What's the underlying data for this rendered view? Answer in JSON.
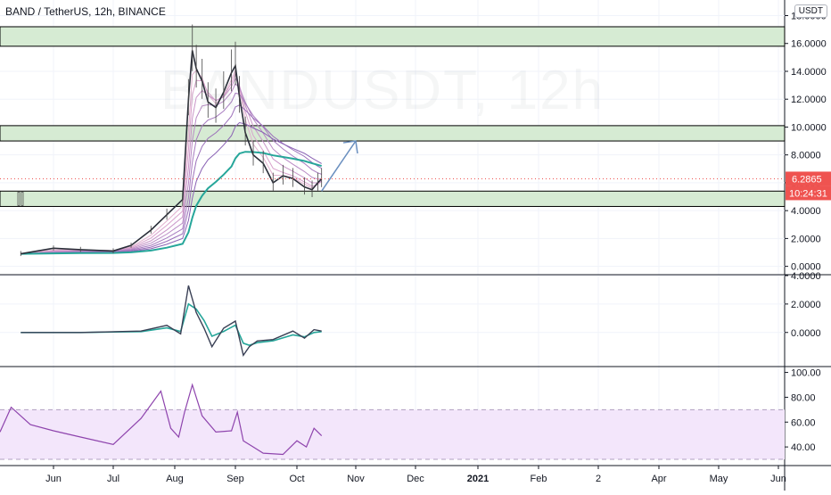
{
  "header": {
    "title": "BAND / TetherUS, 12h, BINANCE",
    "currency": "USDT",
    "watermark": "BANDUSDT, 12h"
  },
  "colors": {
    "background": "#ffffff",
    "grid": "#f0f3fa",
    "zone_fill": "#d6ebd3",
    "zone_border": "#000000",
    "price_line": "#2a2e39",
    "ema_slow": "#26a69a",
    "ema_band": "#b07ac2",
    "projection_arrow": "#6a8fbf",
    "price_label_bg": "#ef5350",
    "rsi_band": "#f3e6fb",
    "rsi_line": "#8e44ad",
    "macd_line": "#3a4055",
    "macd_signal": "#26a69a"
  },
  "price_label": {
    "value": "6.2865",
    "countdown": "10:24:31"
  },
  "chart_data": [
    {
      "type": "line",
      "panel": "price",
      "x_labels": [
        "Jun",
        "Jul",
        "Aug",
        "Sep",
        "Oct",
        "Nov",
        "Dec",
        "2021",
        "Feb",
        "2",
        "Apr",
        "May",
        "Jun"
      ],
      "ylim": [
        -0.6,
        18.8
      ],
      "yticks": [
        "0.0000",
        "2.0000",
        "4.0000",
        "6.0000",
        "8.0000",
        "10.0000",
        "12.0000",
        "14.0000",
        "16.0000",
        "18.0000"
      ],
      "ytick_values": [
        0,
        2,
        4,
        6,
        8,
        10,
        12,
        14,
        16,
        18
      ],
      "x": [
        "May 15",
        "Jun 1",
        "Jun 15",
        "Jul 1",
        "Jul 10",
        "Jul 20",
        "Jul 28",
        "Aug 5",
        "Aug 8",
        "Aug 10",
        "Aug 12",
        "Aug 15",
        "Aug 18",
        "Aug 22",
        "Aug 26",
        "Aug 30",
        "Sep 1",
        "Sep 3",
        "Sep 6",
        "Sep 10",
        "Sep 15",
        "Sep 20",
        "Sep 25",
        "Sep 30",
        "Oct 5",
        "Oct 9",
        "Oct 12",
        "Oct 14"
      ],
      "series": [
        {
          "values": [
            0.9,
            1.3,
            1.2,
            1.1,
            1.5,
            2.6,
            3.7,
            4.8,
            12.0,
            15.5,
            14.2,
            13.3,
            11.8,
            11.4,
            12.5,
            13.9,
            14.4,
            12.2,
            9.6,
            8.0,
            7.4,
            6.0,
            6.5,
            6.3,
            5.7,
            5.5,
            6.0,
            6.29
          ]
        }
      ],
      "zones": [
        [
          15.8,
          17.2
        ],
        [
          9.0,
          10.1
        ],
        [
          4.3,
          5.4
        ]
      ],
      "projection": {
        "from": [
          "Oct 14",
          5.4
        ],
        "to": [
          "Nov 1",
          9.0
        ]
      },
      "last_price": 6.2865
    },
    {
      "type": "line",
      "panel": "oscillator",
      "ylim": [
        -2.4,
        4.0
      ],
      "yticks": [
        "0.0000",
        "2.0000",
        "4.0000"
      ],
      "ytick_values": [
        0,
        2,
        4
      ],
      "x": [
        "May 15",
        "Jun 15",
        "Jul 15",
        "Jul 28",
        "Aug 4",
        "Aug 8",
        "Aug 12",
        "Aug 16",
        "Aug 20",
        "Aug 26",
        "Sep 1",
        "Sep 5",
        "Sep 8",
        "Sep 12",
        "Sep 20",
        "Sep 30",
        "Oct 5",
        "Oct 10",
        "Oct 14"
      ],
      "series": [
        {
          "values": [
            0.0,
            0.0,
            0.1,
            0.5,
            -0.1,
            3.3,
            1.4,
            0.3,
            -1.0,
            0.3,
            0.8,
            -1.6,
            -1.0,
            -0.6,
            -0.5,
            0.1,
            -0.4,
            0.2,
            0.1
          ]
        }
      ]
    },
    {
      "type": "line",
      "panel": "rsi",
      "ylim": [
        25,
        104
      ],
      "yticks": [
        "40.00",
        "60.00",
        "80.00",
        "100.00"
      ],
      "ytick_values": [
        40,
        60,
        80,
        100
      ],
      "band": [
        30,
        70
      ],
      "x": [
        "May 1",
        "May 10",
        "May 20",
        "Jun 1",
        "Jun 15",
        "Jul 1",
        "Jul 15",
        "Jul 25",
        "Jul 30",
        "Aug 3",
        "Aug 6",
        "Aug 10",
        "Aug 15",
        "Aug 22",
        "Aug 30",
        "Sep 2",
        "Sep 5",
        "Sep 10",
        "Sep 15",
        "Sep 25",
        "Oct 1",
        "Oct 6",
        "Oct 10",
        "Oct 14"
      ],
      "series": [
        {
          "values": [
            52,
            72,
            58,
            53,
            48,
            42,
            63,
            85,
            55,
            48,
            68,
            90,
            65,
            52,
            53,
            68,
            45,
            40,
            35,
            34,
            45,
            40,
            55,
            49
          ]
        }
      ]
    }
  ]
}
